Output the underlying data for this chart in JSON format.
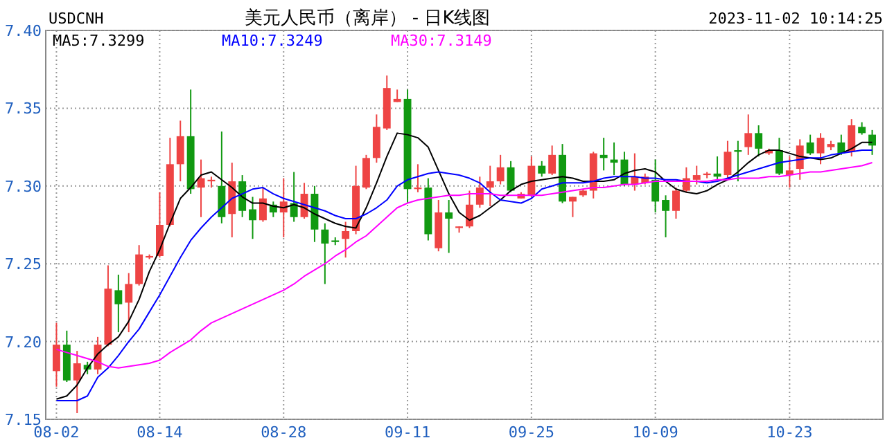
{
  "chart_data": {
    "type": "candlestick",
    "title": "美元人民币（离岸） - 日K线图",
    "subtitle": "USDCNH",
    "annotations": [
      "2023-11-02 10:14:25"
    ],
    "categories": [
      "08-02",
      null,
      null,
      null,
      null,
      null,
      null,
      null,
      null,
      null,
      "08-14",
      null,
      null,
      null,
      null,
      null,
      null,
      null,
      null,
      null,
      null,
      null,
      "08-28",
      null,
      null,
      null,
      null,
      null,
      null,
      null,
      null,
      null,
      null,
      null,
      "09-11",
      null,
      null,
      null,
      null,
      null,
      null,
      null,
      null,
      null,
      null,
      null,
      "09-25",
      null,
      null,
      null,
      null,
      null,
      null,
      null,
      null,
      null,
      null,
      null,
      "10-09",
      null,
      null,
      null,
      null,
      null,
      null,
      null,
      null,
      null,
      null,
      null,
      null,
      "10-23",
      null,
      null,
      null,
      null,
      null,
      null,
      null,
      null
    ],
    "ohlc": [
      [
        7.181,
        7.212,
        7.171,
        7.198
      ],
      [
        7.198,
        7.207,
        7.174,
        7.175
      ],
      [
        7.175,
        7.194,
        7.154,
        7.186
      ],
      [
        7.185,
        7.187,
        7.179,
        7.182
      ],
      [
        7.182,
        7.203,
        7.179,
        7.198
      ],
      [
        7.198,
        7.249,
        7.197,
        7.234
      ],
      [
        7.233,
        7.243,
        7.206,
        7.224
      ],
      [
        7.225,
        7.244,
        7.206,
        7.237
      ],
      [
        7.237,
        7.262,
        7.236,
        7.256
      ],
      [
        7.254,
        7.256,
        7.253,
        7.255
      ],
      [
        7.255,
        7.296,
        7.254,
        7.275
      ],
      [
        7.275,
        7.331,
        7.274,
        7.314
      ],
      [
        7.314,
        7.342,
        7.303,
        7.332
      ],
      [
        7.332,
        7.362,
        7.295,
        7.298
      ],
      [
        7.299,
        7.317,
        7.28,
        7.305
      ],
      [
        7.303,
        7.306,
        7.299,
        7.304
      ],
      [
        7.3,
        7.335,
        7.276,
        7.28
      ],
      [
        7.282,
        7.315,
        7.267,
        7.303
      ],
      [
        7.303,
        7.307,
        7.28,
        7.284
      ],
      [
        7.285,
        7.293,
        7.266,
        7.278
      ],
      [
        7.278,
        7.299,
        7.277,
        7.292
      ],
      [
        7.288,
        7.29,
        7.28,
        7.283
      ],
      [
        7.283,
        7.305,
        7.267,
        7.29
      ],
      [
        7.289,
        7.309,
        7.277,
        7.28
      ],
      [
        7.28,
        7.302,
        7.279,
        7.295
      ],
      [
        7.295,
        7.3,
        7.264,
        7.272
      ],
      [
        7.272,
        7.276,
        7.237,
        7.263
      ],
      [
        7.265,
        7.267,
        7.262,
        7.264
      ],
      [
        7.266,
        7.277,
        7.254,
        7.271
      ],
      [
        7.271,
        7.313,
        7.269,
        7.3
      ],
      [
        7.299,
        7.32,
        7.298,
        7.318
      ],
      [
        7.318,
        7.346,
        7.315,
        7.338
      ],
      [
        7.337,
        7.371,
        7.336,
        7.363
      ],
      [
        7.354,
        7.362,
        7.354,
        7.356
      ],
      [
        7.356,
        7.362,
        7.289,
        7.298
      ],
      [
        7.298,
        7.314,
        7.296,
        7.299
      ],
      [
        7.299,
        7.305,
        7.265,
        7.269
      ],
      [
        7.26,
        7.291,
        7.258,
        7.283
      ],
      [
        7.283,
        7.291,
        7.257,
        7.279
      ],
      [
        7.273,
        7.274,
        7.27,
        7.274
      ],
      [
        7.274,
        7.297,
        7.273,
        7.288
      ],
      [
        7.288,
        7.306,
        7.286,
        7.299
      ],
      [
        7.299,
        7.313,
        7.287,
        7.303
      ],
      [
        7.303,
        7.32,
        7.301,
        7.312
      ],
      [
        7.312,
        7.316,
        7.296,
        7.297
      ],
      [
        7.292,
        7.296,
        7.292,
        7.295
      ],
      [
        7.294,
        7.319,
        7.293,
        7.313
      ],
      [
        7.313,
        7.316,
        7.306,
        7.308
      ],
      [
        7.308,
        7.326,
        7.307,
        7.32
      ],
      [
        7.32,
        7.327,
        7.289,
        7.29
      ],
      [
        7.29,
        7.293,
        7.28,
        7.293
      ],
      [
        7.294,
        7.298,
        7.293,
        7.297
      ],
      [
        7.297,
        7.322,
        7.292,
        7.321
      ],
      [
        7.32,
        7.331,
        7.31,
        7.318
      ],
      [
        7.317,
        7.328,
        7.307,
        7.315
      ],
      [
        7.317,
        7.322,
        7.3,
        7.301
      ],
      [
        7.301,
        7.321,
        7.297,
        7.306
      ],
      [
        7.302,
        7.308,
        7.301,
        7.306
      ],
      [
        7.304,
        7.317,
        7.283,
        7.29
      ],
      [
        7.291,
        7.294,
        7.267,
        7.284
      ],
      [
        7.284,
        7.299,
        7.279,
        7.297
      ],
      [
        7.297,
        7.312,
        7.296,
        7.305
      ],
      [
        7.304,
        7.313,
        7.301,
        7.307
      ],
      [
        7.307,
        7.309,
        7.305,
        7.308
      ],
      [
        7.308,
        7.319,
        7.304,
        7.306
      ],
      [
        7.307,
        7.329,
        7.305,
        7.322
      ],
      [
        7.323,
        7.329,
        7.303,
        7.322
      ],
      [
        7.325,
        7.346,
        7.32,
        7.334
      ],
      [
        7.334,
        7.339,
        7.319,
        7.324
      ],
      [
        7.321,
        7.324,
        7.32,
        7.323
      ],
      [
        7.323,
        7.331,
        7.307,
        7.308
      ],
      [
        7.307,
        7.319,
        7.299,
        7.31
      ],
      [
        7.311,
        7.33,
        7.304,
        7.326
      ],
      [
        7.328,
        7.333,
        7.32,
        7.321
      ],
      [
        7.321,
        7.334,
        7.314,
        7.331
      ],
      [
        7.325,
        7.329,
        7.323,
        7.327
      ],
      [
        7.328,
        7.333,
        7.32,
        7.321
      ],
      [
        7.322,
        7.343,
        7.319,
        7.339
      ],
      [
        7.338,
        7.341,
        7.333,
        7.334
      ],
      [
        7.333,
        7.336,
        7.32,
        7.326
      ]
    ],
    "colors": [
      "#ee4444",
      "#119911",
      "#ee4444",
      "#119911",
      "#ee4444",
      "#ee4444",
      "#119911",
      "#ee4444",
      "#ee4444",
      "#ee4444",
      "#ee4444",
      "#ee4444",
      "#ee4444",
      "#119911",
      "#ee4444",
      "#ee4444",
      "#119911",
      "#ee4444",
      "#119911",
      "#119911",
      "#ee4444",
      "#119911",
      "#ee4444",
      "#119911",
      "#ee4444",
      "#119911",
      "#119911",
      "#119911",
      "#ee4444",
      "#ee4444",
      "#ee4444",
      "#ee4444",
      "#ee4444",
      "#ee4444",
      "#119911",
      "#ee4444",
      "#119911",
      "#ee4444",
      "#119911",
      "#ee4444",
      "#ee4444",
      "#ee4444",
      "#ee4444",
      "#ee4444",
      "#119911",
      "#ee4444",
      "#ee4444",
      "#119911",
      "#ee4444",
      "#119911",
      "#ee4444",
      "#ee4444",
      "#ee4444",
      "#119911",
      "#119911",
      "#119911",
      "#ee4444",
      "#ee4444",
      "#119911",
      "#119911",
      "#ee4444",
      "#ee4444",
      "#ee4444",
      "#ee4444",
      "#119911",
      "#ee4444",
      "#119911",
      "#ee4444",
      "#119911",
      "#ee4444",
      "#119911",
      "#ee4444",
      "#ee4444",
      "#119911",
      "#ee4444",
      "#ee4444",
      "#119911",
      "#ee4444",
      "#119911",
      "#119911"
    ],
    "series": [
      {
        "type": "line",
        "name": "MA5:7.3299",
        "color": "#000000",
        "values": [
          7.163,
          7.165,
          7.172,
          7.183,
          7.192,
          7.198,
          7.203,
          7.213,
          7.227,
          7.245,
          7.259,
          7.276,
          7.292,
          7.299,
          7.307,
          7.309,
          7.304,
          7.299,
          7.293,
          7.289,
          7.289,
          7.287,
          7.286,
          7.288,
          7.286,
          7.282,
          7.279,
          7.276,
          7.274,
          7.273,
          7.286,
          7.302,
          7.319,
          7.334,
          7.333,
          7.331,
          7.325,
          7.31,
          7.295,
          7.283,
          7.278,
          7.281,
          7.286,
          7.291,
          7.297,
          7.301,
          7.303,
          7.304,
          7.305,
          7.306,
          7.305,
          7.303,
          7.303,
          7.303,
          7.304,
          7.308,
          7.31,
          7.311,
          7.309,
          7.303,
          7.298,
          7.296,
          7.295,
          7.297,
          7.301,
          7.304,
          7.309,
          7.315,
          7.32,
          7.323,
          7.323,
          7.321,
          7.319,
          7.318,
          7.317,
          7.318,
          7.321,
          7.324,
          7.328,
          7.328
        ]
      },
      {
        "type": "line",
        "name": "MA10:7.3249",
        "color": "#0000ff",
        "values": [
          7.162,
          7.162,
          7.162,
          7.165,
          7.177,
          7.183,
          7.191,
          7.2,
          7.208,
          7.219,
          7.23,
          7.242,
          7.254,
          7.265,
          7.273,
          7.28,
          7.286,
          7.292,
          7.295,
          7.298,
          7.299,
          7.295,
          7.292,
          7.29,
          7.288,
          7.286,
          7.284,
          7.281,
          7.279,
          7.279,
          7.282,
          7.286,
          7.291,
          7.3,
          7.304,
          7.306,
          7.308,
          7.309,
          7.308,
          7.307,
          7.305,
          7.302,
          7.296,
          7.291,
          7.29,
          7.289,
          7.292,
          7.298,
          7.3,
          7.302,
          7.302,
          7.302,
          7.303,
          7.305,
          7.306,
          7.306,
          7.306,
          7.305,
          7.305,
          7.304,
          7.304,
          7.303,
          7.303,
          7.302,
          7.303,
          7.305,
          7.307,
          7.309,
          7.311,
          7.313,
          7.315,
          7.316,
          7.317,
          7.318,
          7.318,
          7.32,
          7.321,
          7.322,
          7.323,
          7.323
        ]
      },
      {
        "type": "line",
        "name": "MA30:7.3149",
        "color": "#ff00ff",
        "values": [
          7.195,
          7.193,
          7.191,
          7.189,
          7.187,
          7.184,
          7.183,
          7.184,
          7.185,
          7.186,
          7.188,
          7.193,
          7.197,
          7.201,
          7.207,
          7.212,
          7.215,
          7.218,
          7.221,
          7.224,
          7.227,
          7.23,
          7.233,
          7.237,
          7.242,
          7.246,
          7.25,
          7.255,
          7.259,
          7.264,
          7.268,
          7.274,
          7.28,
          7.286,
          7.289,
          7.291,
          7.292,
          7.293,
          7.294,
          7.294,
          7.295,
          7.295,
          7.295,
          7.294,
          7.294,
          7.294,
          7.294,
          7.294,
          7.295,
          7.296,
          7.297,
          7.298,
          7.299,
          7.299,
          7.3,
          7.301,
          7.301,
          7.302,
          7.303,
          7.303,
          7.303,
          7.303,
          7.303,
          7.303,
          7.304,
          7.304,
          7.305,
          7.305,
          7.305,
          7.306,
          7.306,
          7.307,
          7.308,
          7.309,
          7.309,
          7.31,
          7.311,
          7.312,
          7.313,
          7.315
        ]
      }
    ],
    "ylim": [
      7.15,
      7.4
    ],
    "yticks": [
      7.15,
      {
        "value": 7.2,
        "label": "7.20"
      },
      7.25,
      {
        "value": 7.3,
        "label": "7.30"
      },
      7.35,
      {
        "value": 7.4,
        "label": "7.40"
      }
    ],
    "grid": true,
    "legend": "top left"
  }
}
